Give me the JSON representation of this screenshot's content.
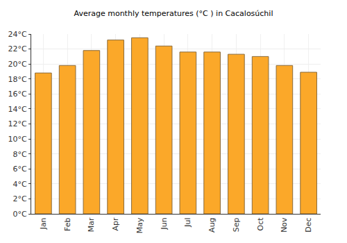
{
  "chart_data": {
    "type": "bar",
    "title": "Average monthly temperatures (°C ) in Cacalosúchil",
    "categories": [
      "Jan",
      "Feb",
      "Mar",
      "Apr",
      "May",
      "Jun",
      "Jul",
      "Aug",
      "Sep",
      "Oct",
      "Nov",
      "Dec"
    ],
    "values": [
      18.8,
      19.8,
      21.8,
      23.2,
      23.5,
      22.4,
      21.6,
      21.6,
      21.3,
      21.0,
      19.8,
      18.9
    ],
    "color": "#fba829",
    "ylim": [
      0,
      24
    ],
    "yticks": [
      {
        "value": 0,
        "label": "0°C"
      },
      {
        "value": 2,
        "label": "2°C"
      },
      {
        "value": 4,
        "label": "4°C"
      },
      {
        "value": 6,
        "label": "6°C"
      },
      {
        "value": 8,
        "label": "8°C"
      },
      {
        "value": 10,
        "label": "10°C"
      },
      {
        "value": 12,
        "label": "12°C"
      },
      {
        "value": 14,
        "label": "14°C"
      },
      {
        "value": 16,
        "label": "16°C"
      },
      {
        "value": 18,
        "label": "18°C"
      },
      {
        "value": 20,
        "label": "20°C"
      },
      {
        "value": 22,
        "label": "22°C"
      },
      {
        "value": 24,
        "label": "24°C"
      }
    ],
    "grid": true
  }
}
